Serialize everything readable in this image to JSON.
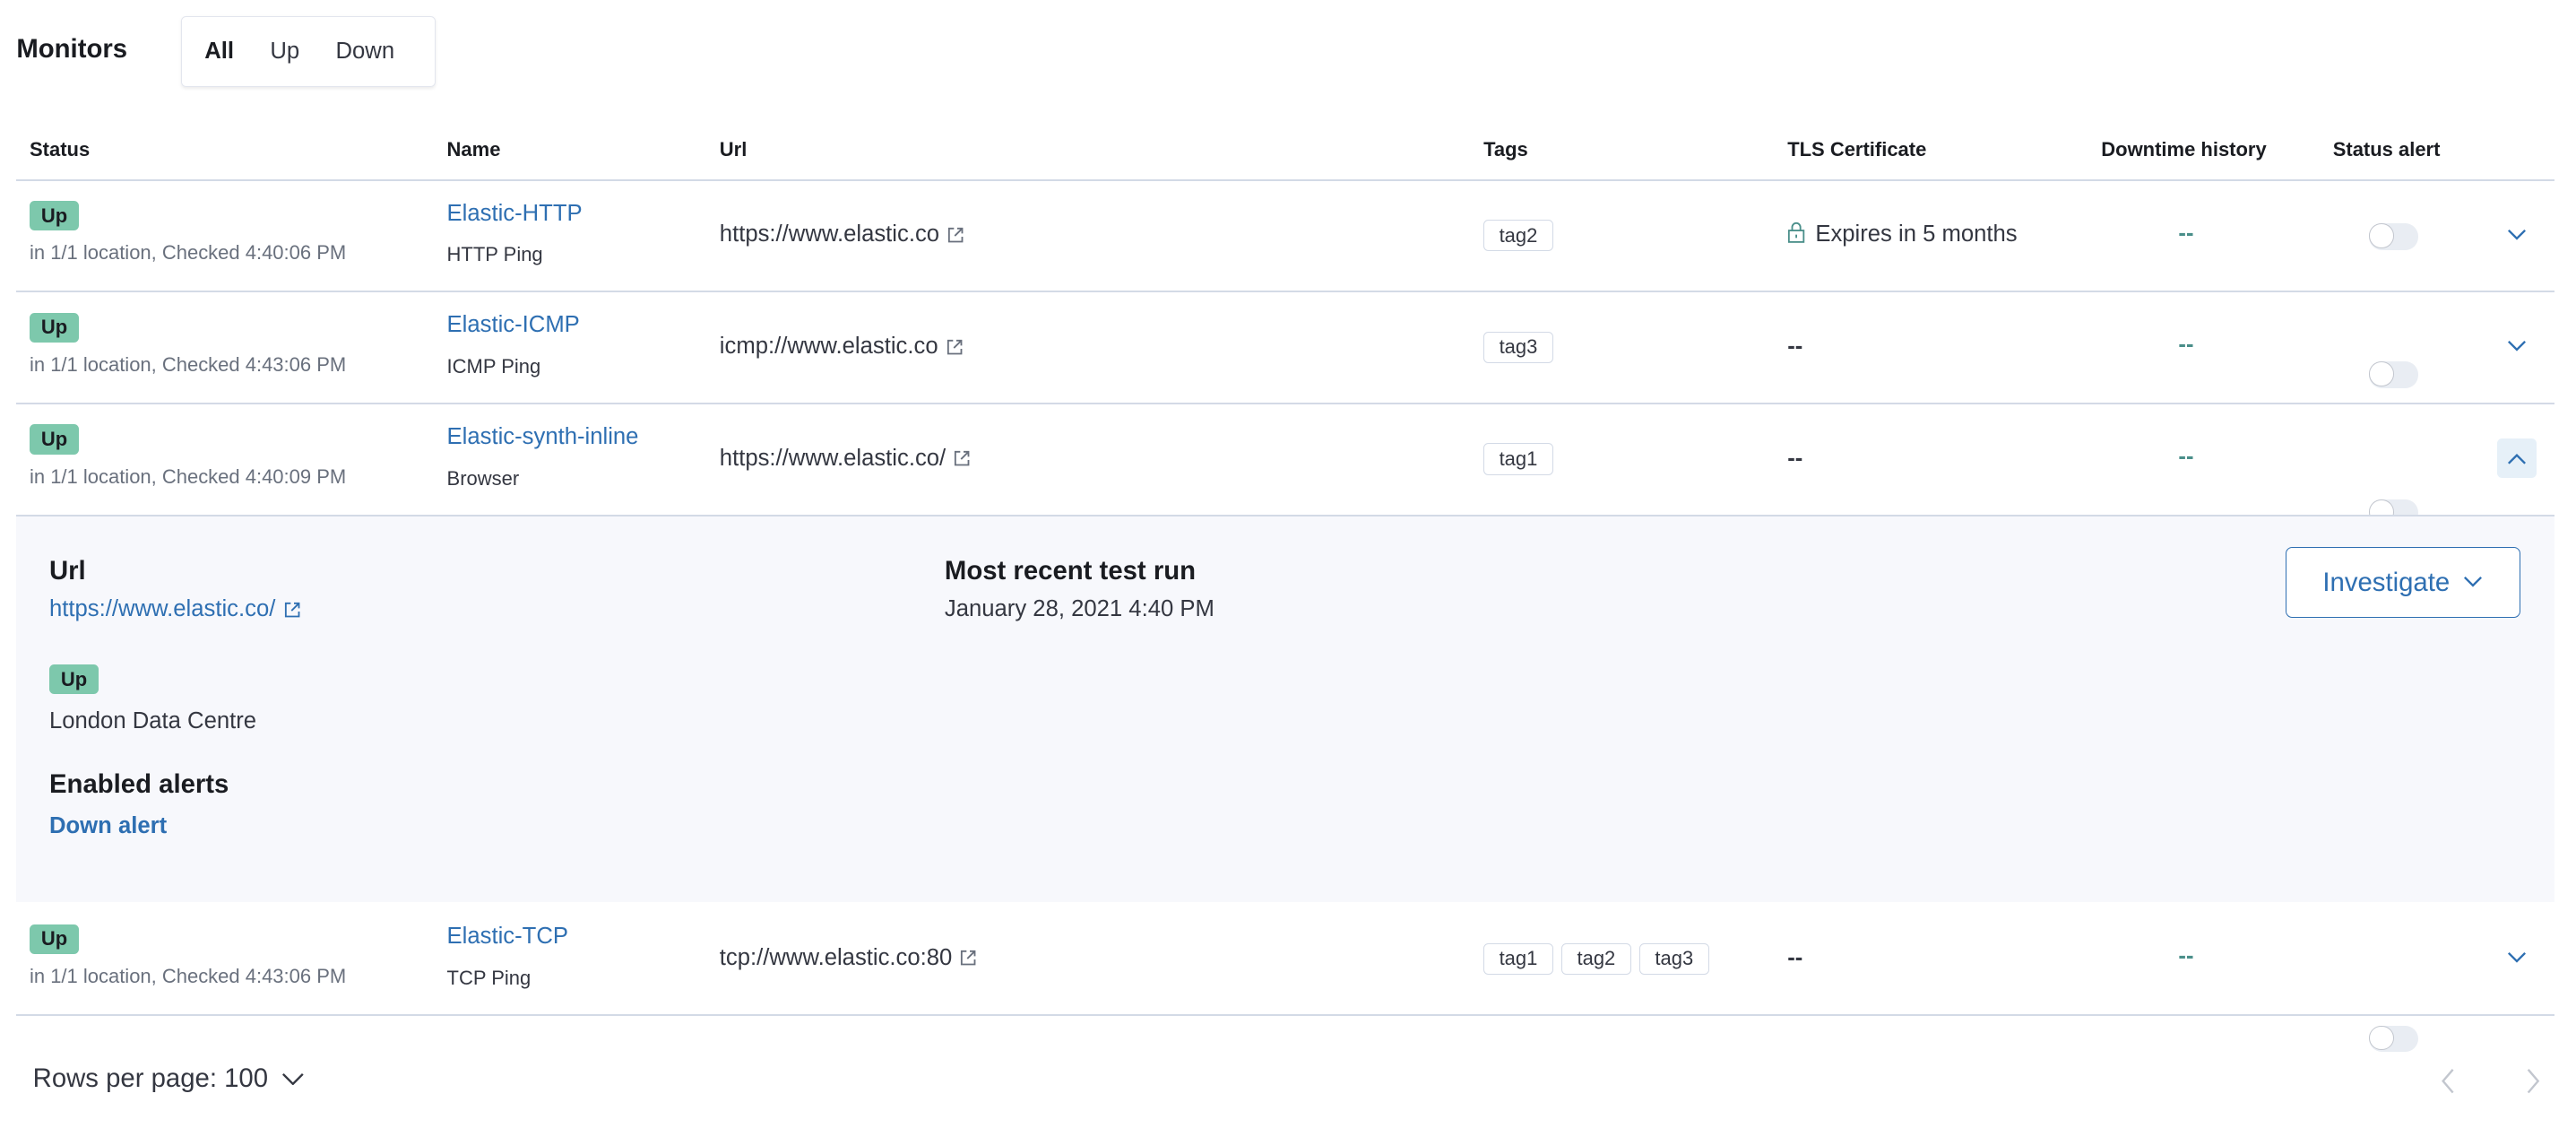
{
  "header": {
    "title": "Monitors",
    "filters": [
      {
        "label": "All",
        "active": true
      },
      {
        "label": "Up",
        "active": false
      },
      {
        "label": "Down",
        "active": false
      }
    ]
  },
  "columns": [
    "Status",
    "Name",
    "Url",
    "Tags",
    "TLS Certificate",
    "Downtime history",
    "Status alert"
  ],
  "rows": [
    {
      "status": "Up",
      "location": "in 1/1 location, Checked 4:40:06 PM",
      "name": "Elastic-HTTP",
      "type": "HTTP Ping",
      "url": "https://www.elastic.co",
      "tags": [
        "tag2"
      ],
      "tls": "Expires in 5 months",
      "downtime": "--",
      "alert_enabled": false,
      "expanded": false
    },
    {
      "status": "Up",
      "location": "in 1/1 location, Checked 4:43:06 PM",
      "name": "Elastic-ICMP",
      "type": "ICMP Ping",
      "url": "icmp://www.elastic.co",
      "tags": [
        "tag3"
      ],
      "tls": "--",
      "downtime": "--",
      "alert_enabled": false,
      "expanded": false
    },
    {
      "status": "Up",
      "location": "in 1/1 location, Checked 4:40:09 PM",
      "name": "Elastic-synth-inline",
      "type": "Browser",
      "url": "https://www.elastic.co/",
      "tags": [
        "tag1"
      ],
      "tls": "--",
      "downtime": "--",
      "alert_enabled": false,
      "expanded": true
    },
    {
      "status": "Up",
      "location": "in 1/1 location, Checked 4:43:06 PM",
      "name": "Elastic-TCP",
      "type": "TCP Ping",
      "url": "tcp://www.elastic.co:80",
      "tags": [
        "tag1",
        "tag2",
        "tag3"
      ],
      "tls": "--",
      "downtime": "--",
      "alert_enabled": false,
      "expanded": false
    }
  ],
  "expanded": {
    "url_label": "Url",
    "url": "https://www.elastic.co/",
    "status": "Up",
    "location": "London Data Centre",
    "alerts_label": "Enabled alerts",
    "alert": "Down alert",
    "recent_label": "Most recent test run",
    "recent_value": "January 28, 2021 4:40 PM",
    "investigate": "Investigate"
  },
  "footer": {
    "rows_per_page": "Rows per page: 100"
  },
  "colors": {
    "accent": "#2e6fb2",
    "up": "#7dc8ac",
    "panel": "#f7f8fc"
  }
}
